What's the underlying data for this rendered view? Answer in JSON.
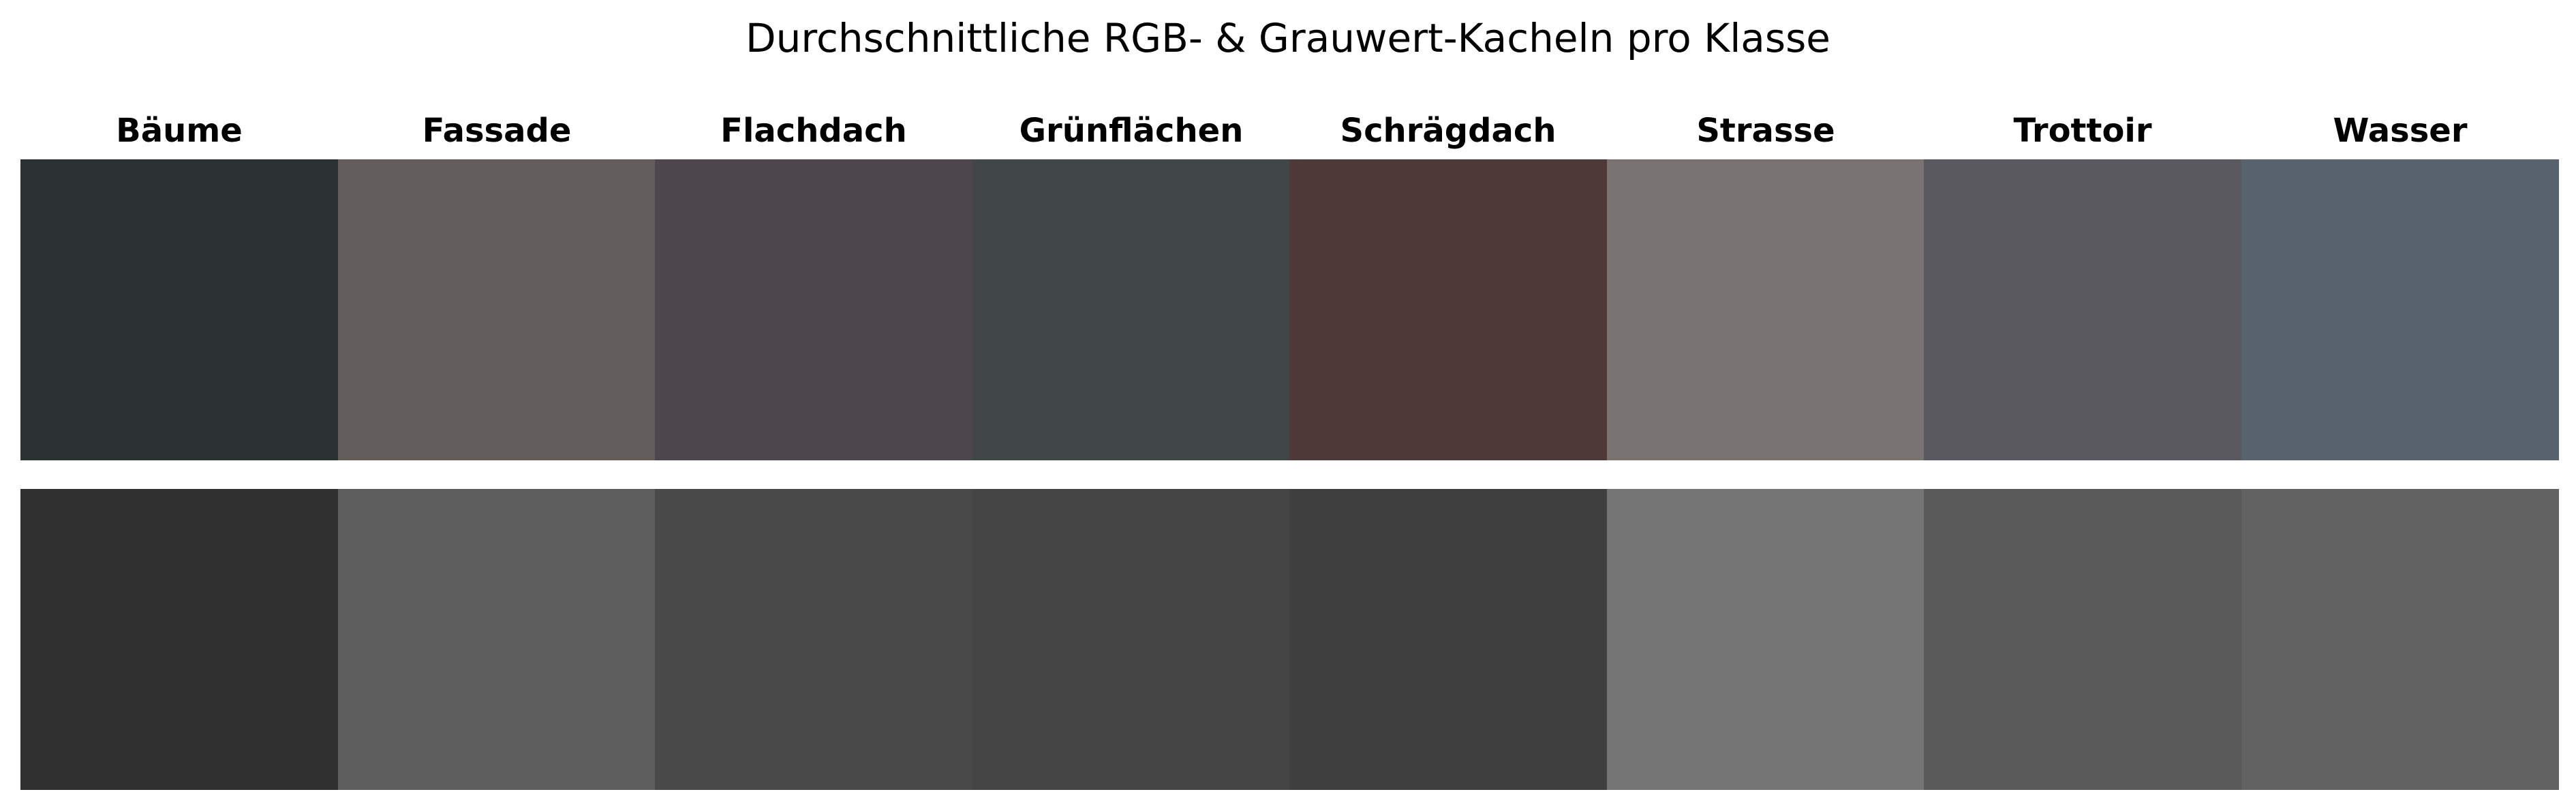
{
  "chart_data": {
    "type": "heatmap",
    "title": "Durchschnittliche RGB- & Grauwert-Kacheln pro Klasse",
    "xlabel": "",
    "ylabel": "",
    "grid": false,
    "legend": "none",
    "categories": [
      "Bäume",
      "Fassade",
      "Flachdach",
      "Grünflächen",
      "Schrägdach",
      "Strasse",
      "Trottoir",
      "Wasser"
    ],
    "series": [
      {
        "values": [
          "#2c3231",
          "#635d5c",
          "#4d474d",
          "#414746",
          "#4f3a3a",
          "#797372",
          "#5a595f",
          "#58636e"
        ]
      },
      {
        "values": [
          "#303030",
          "#5e5e5e",
          "#494949",
          "#454545",
          "#3f3f3f",
          "#757575",
          "#5a5a5a",
          "#626262"
        ]
      }
    ]
  }
}
